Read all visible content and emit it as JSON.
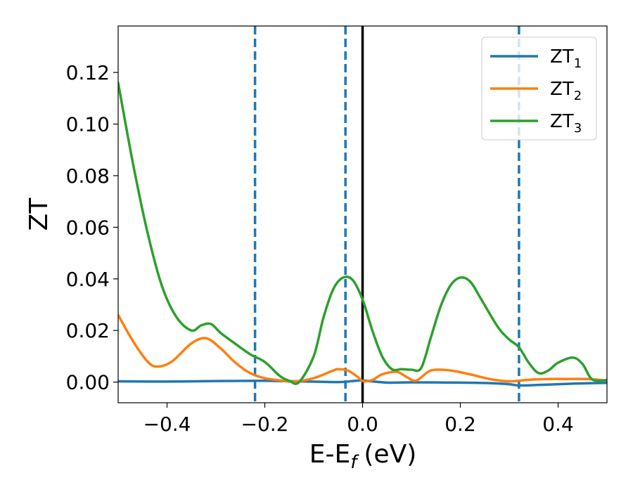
{
  "chart_data": {
    "type": "line",
    "xlabel": "E-E",
    "xlabel_sub": "f",
    "xlabel_unit": "(eV)",
    "ylabel": "ZT",
    "xlim": [
      -0.5,
      0.5
    ],
    "ylim": [
      -0.008,
      0.138
    ],
    "xticks": [
      -0.4,
      -0.2,
      0.0,
      0.2,
      0.4
    ],
    "xtick_labels": [
      "−0.4",
      "−0.2",
      "0.0",
      "0.2",
      "0.4"
    ],
    "yticks": [
      0.0,
      0.02,
      0.04,
      0.06,
      0.08,
      0.1,
      0.12
    ],
    "ytick_labels": [
      "0.00",
      "0.02",
      "0.04",
      "0.06",
      "0.08",
      "0.10",
      "0.12"
    ],
    "grid": false,
    "legend_position": "top-right",
    "vlines_dashed": [
      -0.22,
      -0.035,
      0.32
    ],
    "vline_solid": 0.0,
    "series": [
      {
        "name": "ZT",
        "sub": "1",
        "color": "#1f77b4",
        "x": [
          -0.5,
          -0.4,
          -0.3,
          -0.2,
          -0.13,
          -0.05,
          -0.02,
          0.0,
          0.05,
          0.1,
          0.2,
          0.26,
          0.3,
          0.32,
          0.36,
          0.4,
          0.45,
          0.5
        ],
        "y": [
          0.0003,
          0.0002,
          0.0004,
          0.0005,
          0.0003,
          0.0,
          0.0004,
          0.0006,
          -0.0002,
          -0.0001,
          -0.0002,
          -0.0004,
          -0.0008,
          -0.0013,
          -0.0011,
          -0.0008,
          -0.0005,
          -0.0003
        ]
      },
      {
        "name": "ZT",
        "sub": "2",
        "color": "#ff7f0e",
        "x": [
          -0.5,
          -0.47,
          -0.44,
          -0.42,
          -0.39,
          -0.35,
          -0.32,
          -0.29,
          -0.26,
          -0.23,
          -0.2,
          -0.17,
          -0.14,
          -0.1,
          -0.06,
          -0.05,
          -0.03,
          -0.01,
          0.0,
          0.02,
          0.04,
          0.07,
          0.09,
          0.11,
          0.14,
          0.18,
          0.22,
          0.26,
          0.3,
          0.34,
          0.38,
          0.42,
          0.46,
          0.5
        ],
        "y": [
          0.026,
          0.016,
          0.008,
          0.006,
          0.008,
          0.015,
          0.017,
          0.013,
          0.0075,
          0.0035,
          0.0015,
          0.0007,
          0.0002,
          0.0015,
          0.0045,
          0.005,
          0.0045,
          0.002,
          0.0004,
          0.0008,
          0.003,
          0.004,
          0.002,
          0.0006,
          0.0045,
          0.0045,
          0.003,
          0.0012,
          0.0003,
          0.0009,
          0.0012,
          0.0012,
          0.0012,
          0.0006
        ]
      },
      {
        "name": "ZT",
        "sub": "3",
        "color": "#2ca02c",
        "x": [
          -0.5,
          -0.47,
          -0.44,
          -0.41,
          -0.38,
          -0.35,
          -0.33,
          -0.31,
          -0.29,
          -0.26,
          -0.23,
          -0.2,
          -0.17,
          -0.15,
          -0.13,
          -0.1,
          -0.08,
          -0.06,
          -0.04,
          -0.02,
          0.0,
          0.02,
          0.04,
          0.06,
          0.08,
          0.1,
          0.12,
          0.14,
          0.16,
          0.18,
          0.2,
          0.22,
          0.24,
          0.26,
          0.28,
          0.3,
          0.32,
          0.34,
          0.36,
          0.38,
          0.4,
          0.43,
          0.45,
          0.47,
          0.5
        ],
        "y": [
          0.116,
          0.085,
          0.058,
          0.037,
          0.025,
          0.02,
          0.022,
          0.0225,
          0.019,
          0.0148,
          0.0108,
          0.0078,
          0.0025,
          0.0005,
          0.0,
          0.01,
          0.025,
          0.036,
          0.0405,
          0.0395,
          0.032,
          0.02,
          0.01,
          0.005,
          0.005,
          0.0048,
          0.0055,
          0.0175,
          0.0295,
          0.0375,
          0.0405,
          0.039,
          0.033,
          0.0265,
          0.0205,
          0.0165,
          0.0135,
          0.0075,
          0.0035,
          0.0045,
          0.0075,
          0.0095,
          0.007,
          0.001,
          0.0008
        ]
      }
    ]
  }
}
